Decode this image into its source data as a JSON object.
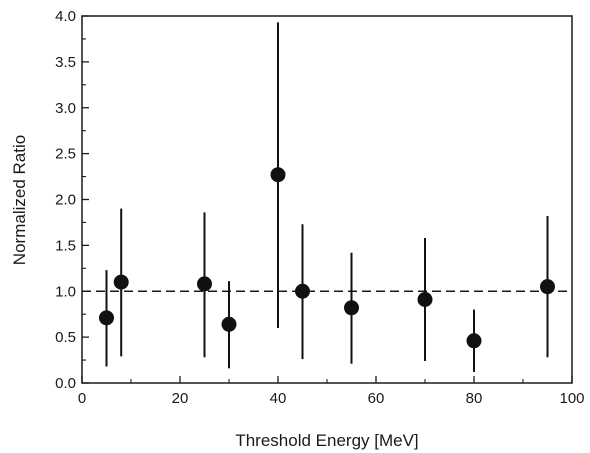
{
  "chart_data": {
    "type": "scatter",
    "xlabel": "Threshold Energy [MeV]",
    "ylabel": "Normalized Ratio",
    "xlim": [
      0,
      100
    ],
    "ylim": [
      0.0,
      4.0
    ],
    "x_ticks": [
      0,
      20,
      40,
      60,
      80,
      100
    ],
    "x_tick_labels": [
      "0",
      "20",
      "40",
      "60",
      "80",
      "100"
    ],
    "y_ticks": [
      0.0,
      0.5,
      1.0,
      1.5,
      2.0,
      2.5,
      3.0,
      3.5,
      4.0
    ],
    "y_tick_labels": [
      "0.0",
      "0.5",
      "1.0",
      "1.5",
      "2.0",
      "2.5",
      "3.0",
      "3.5",
      "4.0"
    ],
    "reference_line": {
      "y": 1.0,
      "style": "dashed"
    },
    "grid": false,
    "points": [
      {
        "x": 5,
        "y": 0.71,
        "err_low": 0.18,
        "err_high": 1.23
      },
      {
        "x": 8,
        "y": 1.1,
        "err_low": 0.29,
        "err_high": 1.9
      },
      {
        "x": 25,
        "y": 1.08,
        "err_low": 0.28,
        "err_high": 1.86
      },
      {
        "x": 30,
        "y": 0.64,
        "err_low": 0.16,
        "err_high": 1.11
      },
      {
        "x": 40,
        "y": 2.27,
        "err_low": 0.6,
        "err_high": 3.93
      },
      {
        "x": 45,
        "y": 1.0,
        "err_low": 0.26,
        "err_high": 1.73
      },
      {
        "x": 55,
        "y": 0.82,
        "err_low": 0.21,
        "err_high": 1.42
      },
      {
        "x": 70,
        "y": 0.91,
        "err_low": 0.24,
        "err_high": 1.58
      },
      {
        "x": 80,
        "y": 0.46,
        "err_low": 0.12,
        "err_high": 0.8
      },
      {
        "x": 95,
        "y": 1.05,
        "err_low": 0.28,
        "err_high": 1.82
      }
    ]
  }
}
